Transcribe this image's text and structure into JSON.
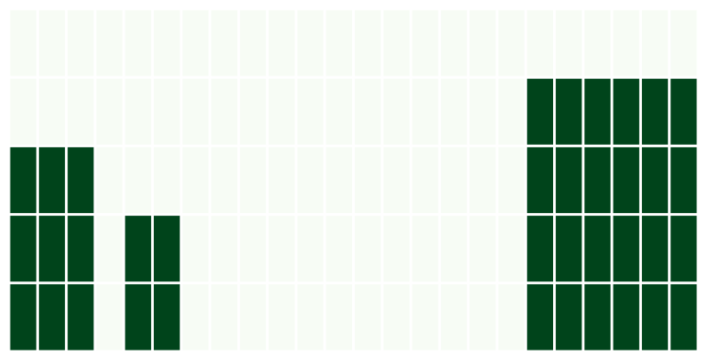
{
  "chart_data": {
    "type": "heatmap",
    "rows": 5,
    "cols": 24,
    "values": [
      [
        0,
        0,
        0,
        0,
        0,
        0,
        0,
        0,
        0,
        0,
        0,
        0,
        0,
        0,
        0,
        0,
        0,
        0,
        0,
        0,
        0,
        0,
        0,
        0
      ],
      [
        0,
        0,
        0,
        0,
        0,
        0,
        0,
        0,
        0,
        0,
        0,
        0,
        0,
        0,
        0,
        0,
        0,
        0,
        1,
        1,
        1,
        1,
        1,
        1
      ],
      [
        1,
        1,
        1,
        0,
        0,
        0,
        0,
        0,
        0,
        0,
        0,
        0,
        0,
        0,
        0,
        0,
        0,
        0,
        1,
        1,
        1,
        1,
        1,
        1
      ],
      [
        1,
        1,
        1,
        0,
        1,
        1,
        0,
        0,
        0,
        0,
        0,
        0,
        0,
        0,
        0,
        0,
        0,
        0,
        1,
        1,
        1,
        1,
        1,
        1
      ],
      [
        1,
        1,
        1,
        0,
        1,
        1,
        0,
        0,
        0,
        0,
        0,
        0,
        0,
        0,
        0,
        0,
        0,
        0,
        1,
        1,
        1,
        1,
        1,
        1
      ]
    ],
    "color_min": "#f7fcf5",
    "color_max": "#00441b",
    "title": "",
    "xlabel": "",
    "ylabel": ""
  }
}
